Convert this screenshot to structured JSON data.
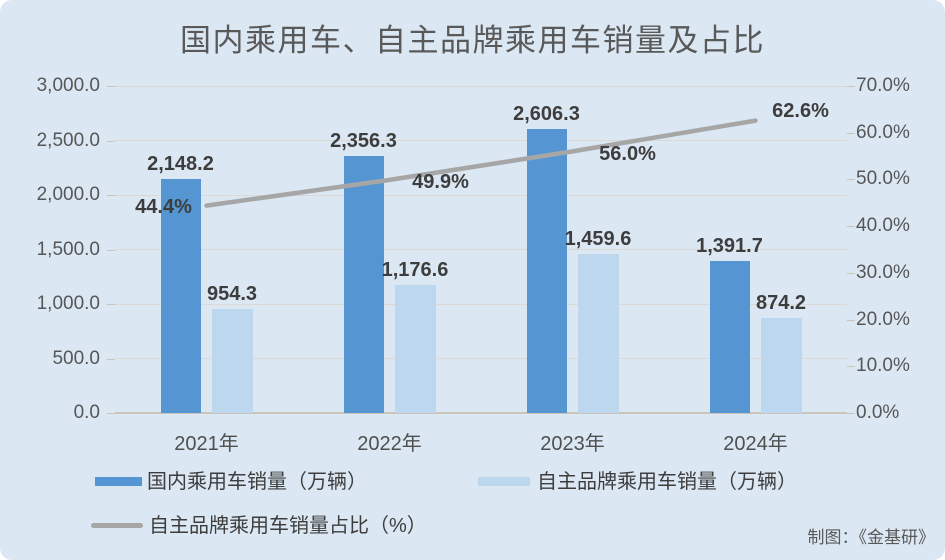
{
  "title": "国内乘用车、自主品牌乘用车销量及占比",
  "attribution": "制图：《金基研》",
  "colors": {
    "background": "#dbe8f4",
    "bar_primary": "#5596d2",
    "bar_secondary": "#bdd7ee",
    "line": "#a6a6a6",
    "gridline": "#dcd9d2",
    "axis_line": "#c9c5bb",
    "title_text": "#595959",
    "label_text": "#3d3d3d",
    "axis_text": "#565656"
  },
  "chart_data": {
    "type": "bar",
    "title": "国内乘用车、自主品牌乘用车销量及占比",
    "categories": [
      "2021年",
      "2022年",
      "2023年",
      "2024年"
    ],
    "series": [
      {
        "name": "国内乘用车销量（万辆）",
        "kind": "bar",
        "axis": "left",
        "color": "#5596d2",
        "values": [
          2148.2,
          2356.3,
          2606.3,
          1391.7
        ],
        "value_labels": [
          "2,148.2",
          "2,356.3",
          "2,606.3",
          "1,391.7"
        ]
      },
      {
        "name": "自主品牌乘用车销量（万辆）",
        "kind": "bar",
        "axis": "left",
        "color": "#bdd7ee",
        "values": [
          954.3,
          1176.6,
          1459.6,
          874.2
        ],
        "value_labels": [
          "954.3",
          "1,176.6",
          "1,459.6",
          "874.2"
        ]
      },
      {
        "name": "自主品牌乘用车销量占比（%）",
        "kind": "line",
        "axis": "right",
        "color": "#a6a6a6",
        "values": [
          44.4,
          49.9,
          56.0,
          62.6
        ],
        "value_labels": [
          "44.4%",
          "49.9%",
          "56.0%",
          "62.6%"
        ]
      }
    ],
    "left_axis": {
      "min": 0,
      "max": 3000,
      "tick_labels": [
        "3,000.0",
        "2,500.0",
        "2,000.0",
        "1,500.0",
        "1,000.0",
        "500.0",
        "0.0"
      ]
    },
    "right_axis": {
      "min": 0,
      "max": 70,
      "tick_labels": [
        "70.0%",
        "60.0%",
        "50.0%",
        "40.0%",
        "30.0%",
        "20.0%",
        "10.0%",
        "0.0%"
      ]
    },
    "grid": true,
    "legend_position": "bottom"
  }
}
